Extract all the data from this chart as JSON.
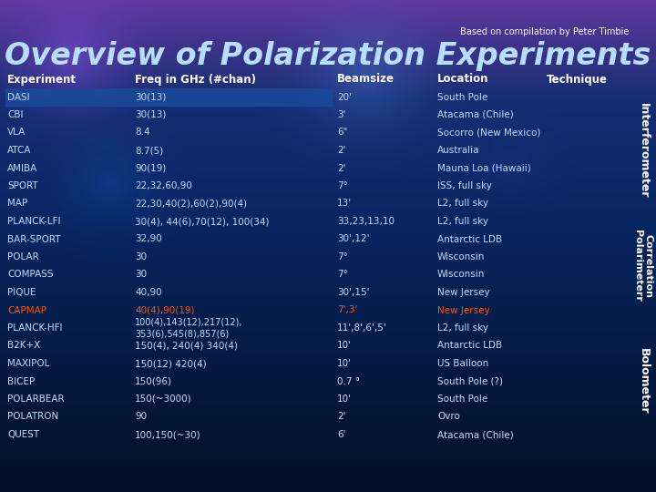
{
  "subtitle": "Based on compilation by Peter Timbie",
  "title": "Overview of Polarization Experiments",
  "headers": [
    "Experiment",
    "Freq in GHz (#chan)",
    "Beamsize",
    "Location",
    "Technique"
  ],
  "rows": [
    [
      "DASI",
      "30(13)",
      "20'",
      "South Pole",
      "Interferometer"
    ],
    [
      "CBI",
      "30(13)",
      "3'",
      "Atacama (Chile)",
      "Interferometer"
    ],
    [
      "VLA",
      "8.4",
      "6\"",
      "Socorro (New Mexico)",
      "Interferometer"
    ],
    [
      "ATCA",
      "8.7(5)",
      "2'",
      "Australia",
      "Interferometer"
    ],
    [
      "AMIBA",
      "90(19)",
      "2'",
      "Mauna Loa (Hawaii)",
      "Interferometer"
    ],
    [
      "SPORT",
      "22,32,60,90",
      "7°",
      "ISS, full sky",
      "Interferometer"
    ],
    [
      "MAP",
      "22,30,40(2),60(2),90(4)",
      "13'",
      "L2, full sky",
      "Interferometer"
    ],
    [
      "PLANCK-LFI",
      "30(4), 44(6),70(12), 100(34)",
      "33,23,13,10",
      "L2, full sky",
      "Correlation\nPolarimeterr"
    ],
    [
      "BAR-SPORT",
      "32,90",
      "30',12'",
      "Antarctic LDB",
      "Correlation\nPolarimeterr"
    ],
    [
      "POLAR",
      "30",
      "7°",
      "Wisconsin",
      "Correlation\nPolarimeterr"
    ],
    [
      "COMPASS",
      "30",
      "7°",
      "Wisconsin",
      "Correlation\nPolarimeterr"
    ],
    [
      "PIQUE",
      "40,90",
      "30',15'",
      "New Jersey",
      "Correlation\nPolarimeterr"
    ],
    [
      "CAPMAP",
      "40(4),90(19)",
      "7',3'",
      "New Jersey",
      "Correlation\nPolarimeterr"
    ],
    [
      "PLANCK-HFI",
      "100(4),143(12),217(12),\n353(6),545(8),857(6)",
      "11',8',6',5'",
      "L2, full sky",
      "Bolometer"
    ],
    [
      "B2K+X",
      "150(4), 240(4) 340(4)",
      "10'",
      "Antarctic LDB",
      "Bolometer"
    ],
    [
      "MAXIPOL",
      "150(12) 420(4)",
      "10'",
      "US Balloon",
      "Bolometer"
    ],
    [
      "BICEP",
      "150(96)",
      "0.7 °",
      "South Pole (?)",
      "Bolometer"
    ],
    [
      "POLARBEAR",
      "150(~3000)",
      "10'",
      "South Pole",
      "Bolometer"
    ],
    [
      "POLATRON",
      "90",
      "2'",
      "Ovro",
      "Bolometer"
    ],
    [
      "QUEST",
      "100,150(~30)",
      "6'",
      "Atacama (Chile)",
      "Bolometer"
    ]
  ],
  "capmap_row": 12,
  "interferometer_rows": [
    0,
    1,
    2,
    3,
    4,
    5,
    6
  ],
  "correlation_rows": [
    7,
    8,
    9,
    10,
    11,
    12
  ],
  "bolometer_rows": [
    13,
    14,
    15,
    16,
    17,
    18,
    19
  ],
  "capmap_color": "#ff5500",
  "row_color": "#c0ddff",
  "header_color": "#ffffff"
}
